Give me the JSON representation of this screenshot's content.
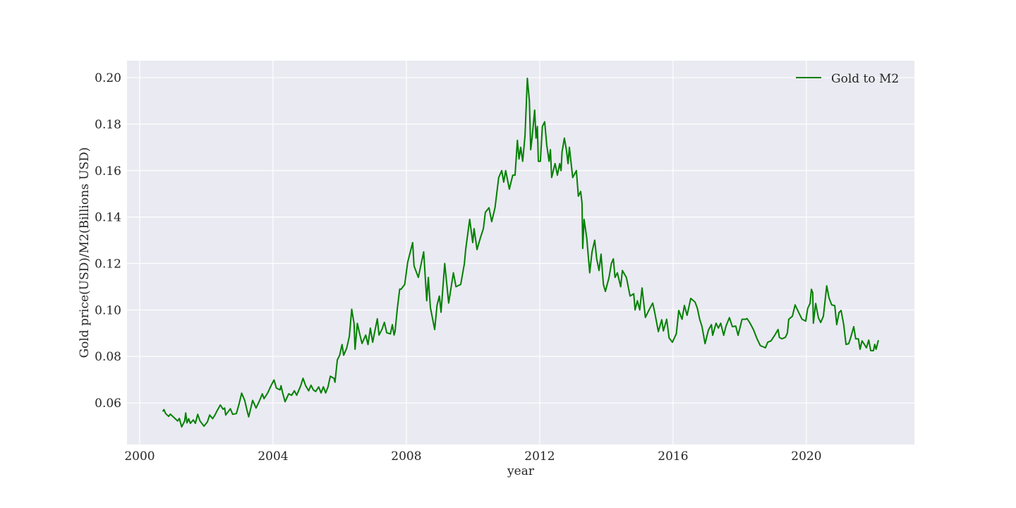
{
  "chart_data": {
    "type": "line",
    "title": "",
    "xlabel": "year",
    "ylabel": "Gold price(USD)/M2(Billions USD)",
    "xlim": [
      1999.62,
      2023.24
    ],
    "ylim": [
      0.0421,
      0.2073
    ],
    "xticks": [
      2000,
      2004,
      2008,
      2012,
      2016,
      2020
    ],
    "yticks": [
      0.06,
      0.08,
      0.1,
      0.12,
      0.14,
      0.16,
      0.18,
      0.2
    ],
    "ytick_labels": [
      "0.06",
      "0.08",
      "0.10",
      "0.12",
      "0.14",
      "0.16",
      "0.18",
      "0.20"
    ],
    "xtick_labels": [
      "2000",
      "2004",
      "2008",
      "2012",
      "2016",
      "2020"
    ],
    "grid": true,
    "background": "#eaeaf2",
    "legend_placement": "top-right",
    "series": [
      {
        "name": "Gold to M2",
        "color": "#008000",
        "x": [
          2000.69,
          2000.73,
          2000.78,
          2000.87,
          2000.92,
          2001.06,
          2001.14,
          2001.19,
          2001.26,
          2001.35,
          2001.38,
          2001.42,
          2001.47,
          2001.52,
          2001.61,
          2001.67,
          2001.74,
          2001.81,
          2001.93,
          2002.03,
          2002.1,
          2002.19,
          2002.26,
          2002.33,
          2002.42,
          2002.5,
          2002.55,
          2002.58,
          2002.72,
          2002.79,
          2002.9,
          2002.98,
          2003.06,
          2003.15,
          2003.22,
          2003.27,
          2003.39,
          2003.49,
          2003.59,
          2003.68,
          2003.73,
          2003.84,
          2003.94,
          2004.03,
          2004.1,
          2004.21,
          2004.24,
          2004.29,
          2004.36,
          2004.47,
          2004.56,
          2004.64,
          2004.71,
          2004.83,
          2004.9,
          2004.98,
          2005.07,
          2005.14,
          2005.21,
          2005.28,
          2005.37,
          2005.44,
          2005.51,
          2005.58,
          2005.65,
          2005.72,
          2005.83,
          2005.86,
          2005.93,
          2006.0,
          2006.07,
          2006.12,
          2006.21,
          2006.29,
          2006.36,
          2006.43,
          2006.46,
          2006.53,
          2006.6,
          2006.67,
          2006.78,
          2006.85,
          2006.92,
          2006.99,
          2007.06,
          2007.13,
          2007.18,
          2007.27,
          2007.34,
          2007.41,
          2007.52,
          2007.58,
          2007.63,
          2007.66,
          2007.73,
          2007.8,
          2007.84,
          2007.95,
          2008.04,
          2008.19,
          2008.23,
          2008.36,
          2008.52,
          2008.61,
          2008.66,
          2008.72,
          2008.85,
          2008.92,
          2008.99,
          2009.04,
          2009.15,
          2009.27,
          2009.41,
          2009.49,
          2009.63,
          2009.74,
          2009.78,
          2009.9,
          2009.99,
          2010.03,
          2010.12,
          2010.22,
          2010.31,
          2010.37,
          2010.48,
          2010.56,
          2010.66,
          2010.77,
          2010.86,
          2010.92,
          2010.98,
          2011.09,
          2011.19,
          2011.26,
          2011.33,
          2011.38,
          2011.43,
          2011.49,
          2011.56,
          2011.63,
          2011.69,
          2011.73,
          2011.77,
          2011.85,
          2011.89,
          2011.93,
          2011.96,
          2012.02,
          2012.08,
          2012.15,
          2012.21,
          2012.28,
          2012.32,
          2012.36,
          2012.46,
          2012.53,
          2012.6,
          2012.64,
          2012.67,
          2012.74,
          2012.8,
          2012.85,
          2012.89,
          2012.99,
          2013.1,
          2013.16,
          2013.23,
          2013.27,
          2013.29,
          2013.33,
          2013.41,
          2013.5,
          2013.57,
          2013.65,
          2013.71,
          2013.78,
          2013.84,
          2013.91,
          2013.97,
          2014.08,
          2014.15,
          2014.21,
          2014.26,
          2014.33,
          2014.43,
          2014.48,
          2014.6,
          2014.71,
          2014.82,
          2014.86,
          2014.93,
          2015.0,
          2015.07,
          2015.17,
          2015.28,
          2015.39,
          2015.45,
          2015.56,
          2015.66,
          2015.71,
          2015.81,
          2015.88,
          2015.98,
          2016.1,
          2016.17,
          2016.27,
          2016.34,
          2016.42,
          2016.53,
          2016.66,
          2016.73,
          2016.8,
          2016.87,
          2016.96,
          2017.06,
          2017.15,
          2017.19,
          2017.29,
          2017.36,
          2017.43,
          2017.52,
          2017.59,
          2017.69,
          2017.78,
          2017.88,
          2017.95,
          2018.07,
          2018.18,
          2018.22,
          2018.31,
          2018.41,
          2018.52,
          2018.62,
          2018.73,
          2018.77,
          2018.84,
          2018.94,
          2019.05,
          2019.15,
          2019.19,
          2019.26,
          2019.37,
          2019.43,
          2019.47,
          2019.58,
          2019.66,
          2019.72,
          2019.79,
          2019.87,
          2019.98,
          2020.04,
          2020.11,
          2020.15,
          2020.19,
          2020.21,
          2020.28,
          2020.36,
          2020.43,
          2020.51,
          2020.61,
          2020.68,
          2020.76,
          2020.85,
          2020.91,
          2020.98,
          2021.04,
          2021.12,
          2021.19,
          2021.27,
          2021.33,
          2021.42,
          2021.48,
          2021.56,
          2021.61,
          2021.67,
          2021.74,
          2021.8,
          2021.87,
          2021.93,
          2022.01,
          2022.05,
          2022.09,
          2022.16
        ],
        "y": [
          0.0563,
          0.0571,
          0.0554,
          0.0542,
          0.0552,
          0.0533,
          0.0522,
          0.0533,
          0.0497,
          0.0522,
          0.0557,
          0.0514,
          0.0532,
          0.0512,
          0.0527,
          0.0512,
          0.0551,
          0.0522,
          0.05,
          0.0518,
          0.0548,
          0.0532,
          0.0548,
          0.0568,
          0.0591,
          0.0573,
          0.0578,
          0.0548,
          0.0575,
          0.0551,
          0.0554,
          0.0595,
          0.0642,
          0.0611,
          0.0568,
          0.054,
          0.0611,
          0.0578,
          0.0608,
          0.0639,
          0.0618,
          0.0643,
          0.0674,
          0.0699,
          0.0664,
          0.0656,
          0.0674,
          0.0643,
          0.0605,
          0.0639,
          0.0633,
          0.0652,
          0.0633,
          0.0674,
          0.0706,
          0.0674,
          0.0652,
          0.0676,
          0.0656,
          0.0649,
          0.0669,
          0.0643,
          0.0669,
          0.0643,
          0.0669,
          0.0715,
          0.0706,
          0.0689,
          0.0785,
          0.0805,
          0.0851,
          0.0805,
          0.0836,
          0.0886,
          0.1003,
          0.0942,
          0.0831,
          0.0942,
          0.0897,
          0.0856,
          0.0892,
          0.0851,
          0.0922,
          0.0861,
          0.0912,
          0.0962,
          0.0892,
          0.0917,
          0.0947,
          0.0902,
          0.0897,
          0.0937,
          0.0892,
          0.0907,
          0.1008,
          0.109,
          0.1089,
          0.111,
          0.1205,
          0.129,
          0.119,
          0.114,
          0.125,
          0.104,
          0.114,
          0.101,
          0.0916,
          0.102,
          0.106,
          0.099,
          0.12,
          0.103,
          0.116,
          0.11,
          0.111,
          0.12,
          0.126,
          0.139,
          0.129,
          0.135,
          0.126,
          0.131,
          0.135,
          0.142,
          0.144,
          0.138,
          0.144,
          0.157,
          0.16,
          0.155,
          0.16,
          0.152,
          0.158,
          0.158,
          0.173,
          0.165,
          0.17,
          0.164,
          0.175,
          0.1997,
          0.19,
          0.169,
          0.174,
          0.186,
          0.174,
          0.179,
          0.164,
          0.164,
          0.179,
          0.181,
          0.171,
          0.164,
          0.169,
          0.157,
          0.163,
          0.158,
          0.163,
          0.16,
          0.168,
          0.174,
          0.169,
          0.163,
          0.17,
          0.157,
          0.16,
          0.149,
          0.151,
          0.146,
          0.1265,
          0.139,
          0.131,
          0.116,
          0.125,
          0.13,
          0.122,
          0.117,
          0.124,
          0.111,
          0.108,
          0.114,
          0.12,
          0.122,
          0.114,
          0.116,
          0.11,
          0.117,
          0.114,
          0.106,
          0.107,
          0.1,
          0.104,
          0.1,
          0.1095,
          0.0968,
          0.1,
          0.103,
          0.099,
          0.0907,
          0.0958,
          0.091,
          0.096,
          0.088,
          0.0861,
          0.0898,
          0.0998,
          0.096,
          0.102,
          0.0977,
          0.105,
          0.1034,
          0.1007,
          0.096,
          0.0928,
          0.0855,
          0.0913,
          0.0937,
          0.0891,
          0.0943,
          0.0922,
          0.0943,
          0.0891,
          0.0931,
          0.0967,
          0.0928,
          0.0931,
          0.0891,
          0.096,
          0.096,
          0.0963,
          0.0943,
          0.0916,
          0.0876,
          0.0846,
          0.084,
          0.0837,
          0.0861,
          0.0867,
          0.0891,
          0.0916,
          0.0882,
          0.0876,
          0.0882,
          0.0901,
          0.096,
          0.0973,
          0.1022,
          0.1004,
          0.0983,
          0.096,
          0.0952,
          0.1007,
          0.1028,
          0.1089,
          0.1074,
          0.0943,
          0.1028,
          0.0967,
          0.0946,
          0.0973,
          0.1104,
          0.1052,
          0.1022,
          0.1019,
          0.0937,
          0.0989,
          0.0998,
          0.0937,
          0.0852,
          0.0855,
          0.0882,
          0.0928,
          0.0876,
          0.0876,
          0.0831,
          0.0867,
          0.0852,
          0.0837,
          0.087,
          0.0825,
          0.0825,
          0.0852,
          0.0831,
          0.087
        ]
      }
    ]
  }
}
